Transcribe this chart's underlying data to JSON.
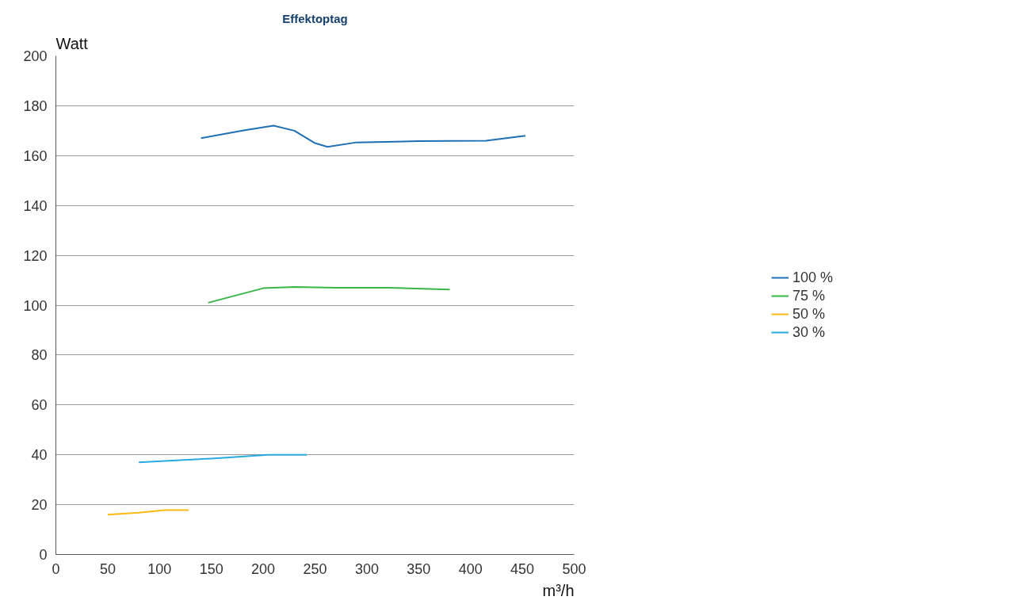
{
  "chart_data": {
    "type": "line",
    "title": "Effektoptag",
    "xlabel": "m³/h",
    "ylabel": "Watt",
    "xlim": [
      0,
      500
    ],
    "xticks": [
      0,
      50,
      100,
      150,
      200,
      250,
      300,
      350,
      400,
      450,
      500
    ],
    "ylim": [
      0,
      200
    ],
    "yticks": [
      0,
      20,
      40,
      60,
      80,
      100,
      120,
      140,
      160,
      180,
      200
    ],
    "grid": "y",
    "legend": "right",
    "marker": "none",
    "line_style": "solid",
    "series": [
      {
        "name": "100 %",
        "color": "#1f6fb4",
        "x": [
          140,
          180,
          210,
          230,
          250,
          262,
          290,
          350,
          415,
          453
        ],
        "values": [
          167,
          170,
          172,
          170,
          165,
          163.5,
          165.3,
          165.8,
          166,
          168
        ]
      },
      {
        "name": "75 %",
        "color": "#3ab54a",
        "x": [
          147,
          200,
          230,
          270,
          320,
          380
        ],
        "values": [
          101,
          106.8,
          107.3,
          107,
          107,
          106.3
        ]
      },
      {
        "name": "50 %",
        "color": "#fdb913",
        "x": [
          50,
          80,
          105,
          128
        ],
        "values": [
          16,
          16.8,
          17.8,
          17.8
        ]
      },
      {
        "name": "30 %",
        "color": "#27aae1",
        "x": [
          80,
          150,
          205,
          242
        ],
        "values": [
          37,
          38.5,
          40,
          40
        ]
      }
    ]
  }
}
